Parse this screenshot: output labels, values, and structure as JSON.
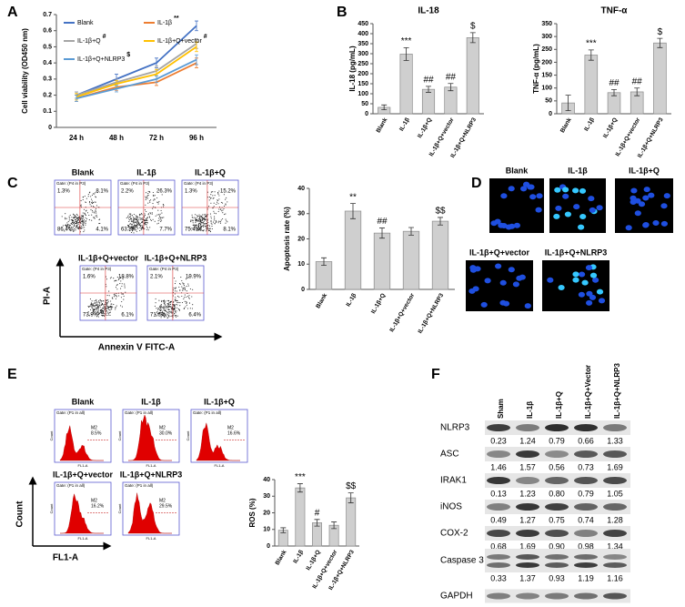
{
  "panel_labels": [
    "A",
    "B",
    "C",
    "D",
    "E",
    "F"
  ],
  "chart_data": [
    {
      "type": "line",
      "y_label": "Cell viability (OD450 nm)",
      "categories": [
        "24 h",
        "48 h",
        "72 h",
        "96 h"
      ],
      "ylim": [
        0,
        0.7
      ],
      "yticks": [
        0,
        0.1,
        0.2,
        0.3,
        0.4,
        0.5,
        0.6,
        0.7
      ],
      "series": [
        {
          "name": "Blank",
          "color": "#4472c4",
          "values": [
            0.2,
            0.3,
            0.4,
            0.63
          ],
          "errors": [
            0.02,
            0.03,
            0.03,
            0.03
          ]
        },
        {
          "name": "IL-1β",
          "color": "#ed7d31",
          "values": [
            0.18,
            0.25,
            0.28,
            0.4
          ],
          "errors": [
            0.02,
            0.02,
            0.02,
            0.03
          ],
          "annotation": "**"
        },
        {
          "name": "IL-1β+Q",
          "color": "#a5a5a5",
          "values": [
            0.2,
            0.28,
            0.35,
            0.52
          ],
          "errors": [
            0.02,
            0.02,
            0.03,
            0.03
          ],
          "annotation": "#"
        },
        {
          "name": "IL-1β+Q+vector",
          "color": "#ffc000",
          "values": [
            0.19,
            0.27,
            0.33,
            0.5
          ],
          "errors": [
            0.02,
            0.02,
            0.03,
            0.03
          ],
          "annotation": "#"
        },
        {
          "name": "IL-1β+Q+NLRP3",
          "color": "#5b9bd5",
          "values": [
            0.18,
            0.24,
            0.3,
            0.42
          ],
          "errors": [
            0.02,
            0.02,
            0.02,
            0.03
          ],
          "annotation": "$"
        }
      ]
    },
    {
      "type": "bar",
      "title": "IL-18",
      "y_label": "IL-18 (pg/mL)",
      "categories": [
        "Blank",
        "IL-1β",
        "IL-1β+Q",
        "IL-1β+Q+vector",
        "IL-1β+Q+NLRP3"
      ],
      "values": [
        32,
        298,
        122,
        133,
        380
      ],
      "errors": [
        12,
        32,
        15,
        18,
        25
      ],
      "annotations": [
        null,
        "***",
        "##",
        "##",
        "$"
      ],
      "ylim": [
        0,
        450
      ],
      "yticks": [
        0,
        50,
        100,
        150,
        200,
        250,
        300,
        350,
        400,
        450
      ]
    },
    {
      "type": "bar",
      "title": "TNF-α",
      "y_label": "TNF-α (pg/mL)",
      "categories": [
        "Blank",
        "IL-1β",
        "IL-1β+Q",
        "IL-1β+Q+vector",
        "IL-1β+Q+NLRP3"
      ],
      "values": [
        42,
        228,
        82,
        85,
        275
      ],
      "errors": [
        30,
        20,
        12,
        15,
        18
      ],
      "annotations": [
        null,
        "***",
        "##",
        "##",
        "$"
      ],
      "ylim": [
        0,
        350
      ],
      "yticks": [
        0,
        50,
        100,
        150,
        200,
        250,
        300,
        350
      ]
    },
    {
      "type": "bar",
      "y_label": "Apoptosis rate (%)",
      "categories": [
        "Blank",
        "IL-1β",
        "IL-1β+Q",
        "IL-1β+Q+vector",
        "IL-1β+Q+NLRP3"
      ],
      "values": [
        11,
        31,
        22.3,
        23,
        27
      ],
      "errors": [
        1.5,
        3,
        2,
        1.5,
        1.5
      ],
      "annotations": [
        null,
        "**",
        "##",
        null,
        "$$"
      ],
      "ylim": [
        0,
        40
      ],
      "yticks": [
        0,
        10,
        20,
        30,
        40
      ]
    },
    {
      "type": "bar",
      "y_label": "ROS (%)",
      "categories": [
        "Blank",
        "IL-1β",
        "IL-1β+Q",
        "IL-1β+Q+vector",
        "IL-1β+Q+NLRP3"
      ],
      "values": [
        9.5,
        35,
        14,
        12.5,
        29
      ],
      "errors": [
        1.5,
        2.5,
        2,
        2,
        3
      ],
      "annotations": [
        null,
        "***",
        "#",
        null,
        "$$"
      ],
      "ylim": [
        0,
        40
      ],
      "yticks": [
        0,
        10,
        20,
        30,
        40
      ]
    }
  ],
  "flow_c": {
    "gate": "Gate: (P4 in P3)",
    "y_label": "PI-A",
    "x_label": "Annexin V FITC-A",
    "plots": [
      {
        "title": "Blank",
        "quadrants": [
          "1.3%",
          "8.1%",
          "86.4%",
          "4.1%"
        ]
      },
      {
        "title": "IL-1β",
        "quadrants": [
          "2.2%",
          "26.3%",
          "63.8%",
          "7.7%"
        ]
      },
      {
        "title": "IL-1β+Q",
        "quadrants": [
          "1.3%",
          "15.2%",
          "75.4%",
          "8.1%"
        ]
      },
      {
        "title": "IL-1β+Q+vector",
        "quadrants": [
          "1.6%",
          "18.8%",
          "73.9%",
          "6.1%"
        ]
      },
      {
        "title": "IL-1β+Q+NLRP3",
        "quadrants": [
          "2.1%",
          "19.9%",
          "71.6%",
          "6.4%"
        ]
      }
    ]
  },
  "images_d": {
    "titles": [
      "Blank",
      "IL-1β",
      "IL-1β+Q",
      "IL-1β+Q+vector",
      "IL-1β+Q+NLRP3"
    ]
  },
  "flow_e": {
    "gate": "Gate: (P1 in all)",
    "marker": "M2",
    "y_label": "Count",
    "x_label": "FL1-A",
    "plots": [
      {
        "title": "Blank",
        "percent": "8.5%"
      },
      {
        "title": "IL-1β",
        "percent": "30.0%"
      },
      {
        "title": "IL-1β+Q",
        "percent": "16.6%"
      },
      {
        "title": "IL-1β+Q+vector",
        "percent": "16.2%"
      },
      {
        "title": "IL-1β+Q+NLRP3",
        "percent": "29.5%"
      }
    ]
  },
  "blot_f": {
    "lanes": [
      "Sham",
      "IL-1β",
      "IL-1β+Q",
      "IL-1β+Q+Vector",
      "IL-1β+Q+NLRP3"
    ],
    "rows": [
      {
        "name": "NLRP3",
        "values": [
          "0.23",
          "1.24",
          "0.79",
          "0.66",
          "1.33"
        ]
      },
      {
        "name": "ASC",
        "values": [
          "1.46",
          "1.57",
          "0.56",
          "0.73",
          "1.69"
        ]
      },
      {
        "name": "IRAK1",
        "values": [
          "0.13",
          "1.23",
          "0.80",
          "0.79",
          "1.05"
        ]
      },
      {
        "name": "iNOS",
        "values": [
          "0.49",
          "1.27",
          "0.75",
          "0.74",
          "1.28"
        ]
      },
      {
        "name": "COX-2",
        "values": [
          "0.68",
          "1.69",
          "0.90",
          "0.98",
          "1.34"
        ]
      },
      {
        "name": "Caspase 3",
        "values": [
          "0.33",
          "1.37",
          "0.93",
          "1.19",
          "1.16"
        ]
      },
      {
        "name": "GAPDH"
      }
    ]
  }
}
